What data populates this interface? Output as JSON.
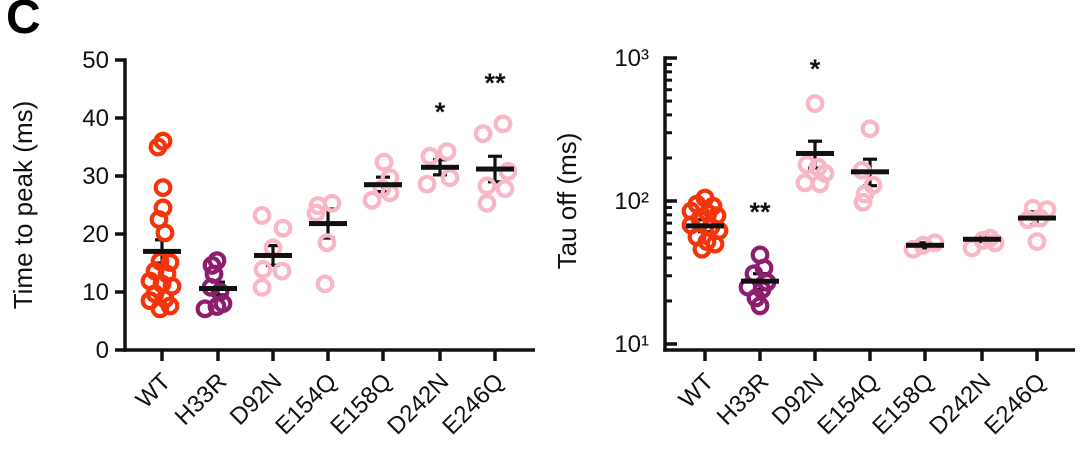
{
  "panel_label": "C",
  "colors": {
    "red": "#f4340b",
    "purple": "#8d1e6f",
    "pink": "#f9b7c6",
    "axis": "#111111"
  },
  "chart_data": [
    {
      "type": "scatter",
      "id": "time-to-peak",
      "ylabel": "Time to peak (ms)",
      "yscale": "linear",
      "ylim": [
        0,
        50
      ],
      "yticks": [
        {
          "value": 0,
          "label": "0"
        },
        {
          "value": 10,
          "label": "10"
        },
        {
          "value": 20,
          "label": "20"
        },
        {
          "value": 30,
          "label": "30"
        },
        {
          "value": 40,
          "label": "40"
        },
        {
          "value": 50,
          "label": "50"
        }
      ],
      "yminor": [],
      "categories": [
        "WT",
        "H33R",
        "D92N",
        "E154Q",
        "E158Q",
        "D242N",
        "E246Q"
      ],
      "legend": "none",
      "grid": false,
      "groups": [
        {
          "name": "WT",
          "color": "red",
          "mean": 17,
          "err": [
            15,
            19
          ],
          "sig": "",
          "sig_y": 0,
          "points": [
            [
              1,
              36
            ],
            [
              -4,
              35
            ],
            [
              1,
              28
            ],
            [
              1,
              24.5
            ],
            [
              -3,
              22.5
            ],
            [
              3,
              20.2
            ],
            [
              -2,
              15.3
            ],
            [
              8,
              15.1
            ],
            [
              -7,
              13.6
            ],
            [
              5,
              13.1
            ],
            [
              -12,
              11.9
            ],
            [
              0,
              11.4
            ],
            [
              10,
              11
            ],
            [
              -7,
              9.7
            ],
            [
              3,
              8.8
            ],
            [
              -12,
              8.5
            ],
            [
              8,
              7.6
            ],
            [
              -2,
              7.1
            ]
          ]
        },
        {
          "name": "H33R",
          "color": "purple",
          "mean": 10.6,
          "err": [
            9.5,
            11.7
          ],
          "sig": "",
          "sig_y": 0,
          "points": [
            [
              -1,
              15.4
            ],
            [
              -6,
              14.6
            ],
            [
              -4,
              13.1
            ],
            [
              -7,
              10.8
            ],
            [
              2,
              10
            ],
            [
              5,
              8
            ],
            [
              -1,
              7.5
            ],
            [
              -13,
              7.1
            ]
          ]
        },
        {
          "name": "D92N",
          "color": "pink",
          "mean": 16.3,
          "err": [
            14.6,
            18
          ],
          "sig": "",
          "sig_y": 0,
          "points": [
            [
              -11,
              23.2
            ],
            [
              10,
              21
            ],
            [
              0,
              17.6
            ],
            [
              -10,
              13.9
            ],
            [
              9,
              13.6
            ],
            [
              -11,
              10.8
            ]
          ]
        },
        {
          "name": "E154Q",
          "color": "pink",
          "mean": 21.8,
          "err": [
            19.3,
            24.3
          ],
          "sig": "",
          "sig_y": 0,
          "points": [
            [
              -10,
              24.9
            ],
            [
              4,
              25.3
            ],
            [
              -12,
              23.6
            ],
            [
              -1,
              18.5
            ],
            [
              -3,
              11.4
            ]
          ]
        },
        {
          "name": "E158Q",
          "color": "pink",
          "mean": 28.5,
          "err": [
            27.3,
            29.8
          ],
          "sig": "",
          "sig_y": 0,
          "points": [
            [
              1,
              32.4
            ],
            [
              7,
              29.7
            ],
            [
              -1,
              27.8
            ],
            [
              7,
              27.1
            ],
            [
              -11,
              25.8
            ]
          ]
        },
        {
          "name": "D242N",
          "color": "pink",
          "mean": 31.5,
          "err": [
            30.2,
            32.8
          ],
          "sig": "*",
          "sig_y": 41,
          "points": [
            [
              -10,
              33.4
            ],
            [
              7,
              34.2
            ],
            [
              10,
              29.7
            ],
            [
              -13,
              28.6
            ]
          ]
        },
        {
          "name": "E246Q",
          "color": "pink",
          "mean": 31.2,
          "err": [
            29,
            33.4
          ],
          "sig": "**",
          "sig_y": 46,
          "points": [
            [
              8,
              39
            ],
            [
              -12,
              37.3
            ],
            [
              13,
              30.8
            ],
            [
              -8,
              28.3
            ],
            [
              10,
              27.8
            ],
            [
              -8,
              25.3
            ]
          ]
        }
      ]
    },
    {
      "type": "scatter",
      "id": "tau-off",
      "ylabel": "Tau off (ms)",
      "yscale": "log",
      "ylim": [
        10,
        1000
      ],
      "yticks": [
        {
          "value": 10,
          "label": "10¹"
        },
        {
          "value": 100,
          "label": "10²"
        },
        {
          "value": 1000,
          "label": "10³"
        }
      ],
      "yminor": [
        20,
        30,
        40,
        50,
        60,
        70,
        80,
        90,
        200,
        300,
        400,
        500,
        600,
        700,
        800,
        900
      ],
      "categories": [
        "WT",
        "H33R",
        "D92N",
        "E154Q",
        "E158Q",
        "D242N",
        "E246Q"
      ],
      "legend": "none",
      "grid": false,
      "groups": [
        {
          "name": "WT",
          "color": "red",
          "mean": 67,
          "err": [
            61,
            74
          ],
          "sig": "",
          "sig_y": 0,
          "points": [
            [
              0,
              105
            ],
            [
              -8,
              95
            ],
            [
              8,
              92
            ],
            [
              -14,
              85
            ],
            [
              3,
              82
            ],
            [
              12,
              79
            ],
            [
              -5,
              75
            ],
            [
              -14,
              68
            ],
            [
              6,
              66
            ],
            [
              14,
              62
            ],
            [
              -8,
              56
            ],
            [
              2,
              52
            ],
            [
              10,
              50
            ],
            [
              -3,
              46
            ]
          ]
        },
        {
          "name": "H33R",
          "color": "purple",
          "mean": 27.5,
          "err": [
            24,
            31
          ],
          "sig": "**",
          "sig_y": 84,
          "points": [
            [
              0,
              42
            ],
            [
              4,
              34
            ],
            [
              -6,
              31
            ],
            [
              7,
              27
            ],
            [
              -12,
              25
            ],
            [
              2,
              24
            ],
            [
              -4,
              21
            ],
            [
              0,
              18.5
            ]
          ]
        },
        {
          "name": "D92N",
          "color": "pink",
          "mean": 215,
          "err": [
            170,
            262
          ],
          "sig": "*",
          "sig_y": 840,
          "points": [
            [
              0,
              480
            ],
            [
              -8,
              180
            ],
            [
              3,
              172
            ],
            [
              10,
              156
            ],
            [
              -10,
              134
            ],
            [
              5,
              132
            ]
          ]
        },
        {
          "name": "E154Q",
          "color": "pink",
          "mean": 160,
          "err": [
            128,
            196
          ],
          "sig": "",
          "sig_y": 0,
          "points": [
            [
              0,
              320
            ],
            [
              -8,
              164
            ],
            [
              3,
              129
            ],
            [
              -5,
              112
            ],
            [
              -7,
              98
            ]
          ]
        },
        {
          "name": "E158Q",
          "color": "pink",
          "mean": 49,
          "err": [
            47,
            51
          ],
          "sig": "",
          "sig_y": 0,
          "points": [
            [
              -12,
              46
            ],
            [
              -2,
              49
            ],
            [
              10,
              51
            ]
          ]
        },
        {
          "name": "D242N",
          "color": "pink",
          "mean": 54,
          "err": [
            52,
            56
          ],
          "sig": "",
          "sig_y": 0,
          "points": [
            [
              -10,
              47
            ],
            [
              1,
              53
            ],
            [
              8,
              55
            ],
            [
              13,
              51
            ]
          ]
        },
        {
          "name": "E246Q",
          "color": "pink",
          "mean": 76,
          "err": [
            68,
            84
          ],
          "sig": "",
          "sig_y": 0,
          "points": [
            [
              -4,
              89
            ],
            [
              10,
              87
            ],
            [
              3,
              76
            ],
            [
              -9,
              74
            ],
            [
              0,
              52
            ]
          ]
        }
      ]
    }
  ]
}
